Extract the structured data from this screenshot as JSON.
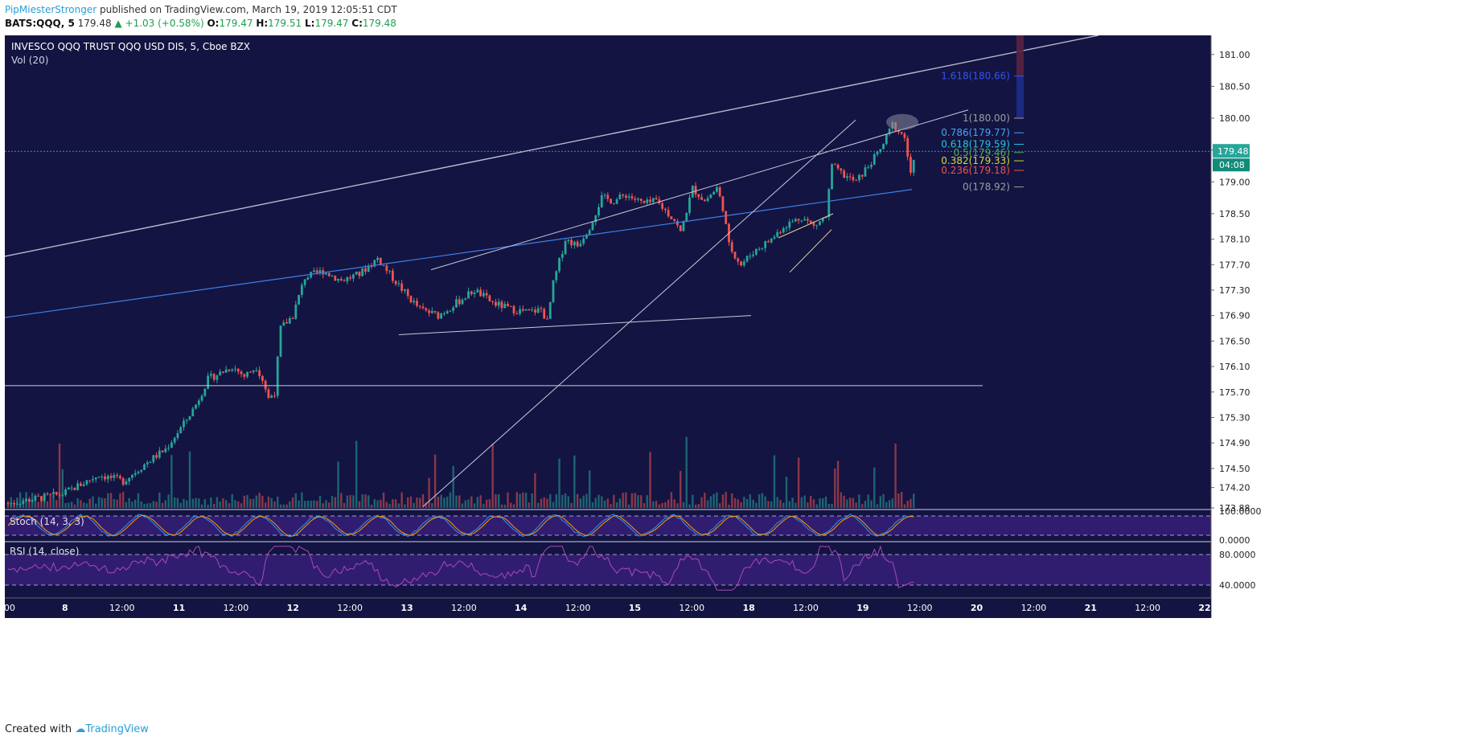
{
  "header": {
    "author": "PipMiesterStronger",
    "published": "published on TradingView.com, March 19, 2019 12:05:51 CDT",
    "symbol": "BATS:QQQ, 5",
    "last": "179.48",
    "change": "▲ +1.03 (+0.58%)",
    "o_label": "O:",
    "o": "179.47",
    "h_label": "H:",
    "h": "179.51",
    "l_label": "L:",
    "l": "179.47",
    "c_label": "C:",
    "c": "179.48"
  },
  "legend": {
    "title": "INVESCO QQQ TRUST QQQ USD DIS, 5, Cboe BZX",
    "vol": "Vol (20)",
    "stoch": "Stoch (14, 3, 3)",
    "rsi": "RSI (14, close)"
  },
  "footer": {
    "created": "Created with",
    "brand": "TradingView"
  },
  "colors": {
    "background": "#131441",
    "bull": "#26a69a",
    "bear": "#ef5350",
    "osc_band": "#3a1f7a",
    "rsi_line": "#ab47bc",
    "stoch_k": "#2196f3",
    "stoch_d": "#ff9800",
    "axis_text": "#222222",
    "price_tag": "#26a69a"
  },
  "chart_data": {
    "type": "candlestick",
    "timeframe": "5",
    "price_axis": {
      "ticks": [
        "181.00",
        "180.50",
        "180.00",
        "179.50",
        "179.00",
        "178.50",
        "178.10",
        "177.70",
        "177.30",
        "176.90",
        "176.50",
        "176.10",
        "175.70",
        "175.30",
        "174.90",
        "174.50",
        "174.20",
        "173.88"
      ],
      "ylim": [
        173.88,
        181.3
      ]
    },
    "time_axis": {
      "ticks": [
        ":00",
        "8",
        "12:00",
        "11",
        "12:00",
        "12",
        "12:00",
        "13",
        "12:00",
        "14",
        "12:00",
        "15",
        "12:00",
        "18",
        "12:00",
        "19",
        "12:00",
        "20",
        "12:00",
        "21",
        "12:00",
        "22"
      ]
    },
    "current_price": {
      "value": 179.48,
      "label": "179.48",
      "countdown": "04:08"
    },
    "fibonacci": [
      {
        "label": "1.618(180.66)",
        "level": 1.618,
        "price": 180.66,
        "color": "#3355ee"
      },
      {
        "label": "1(180.00)",
        "level": 1,
        "price": 180.0,
        "color": "#9e9e9e"
      },
      {
        "label": "0.786(179.77)",
        "level": 0.786,
        "price": 179.77,
        "color": "#42a5f5"
      },
      {
        "label": "0.618(179.59)",
        "level": 0.618,
        "price": 179.59,
        "color": "#26c6da"
      },
      {
        "label": "0.5(179.46)",
        "level": 0.5,
        "price": 179.46,
        "color": "#4caf50"
      },
      {
        "label": "0.382(179.33)",
        "level": 0.382,
        "price": 179.33,
        "color": "#cddc39"
      },
      {
        "label": "0.236(179.18)",
        "level": 0.236,
        "price": 179.18,
        "color": "#ef5350"
      },
      {
        "label": "0(178.92)",
        "level": 0,
        "price": 178.92,
        "color": "#9e9e9e"
      }
    ],
    "price_path": [
      [
        0,
        173.95
      ],
      [
        18,
        174.1
      ],
      [
        30,
        174.4
      ],
      [
        38,
        174.3
      ],
      [
        46,
        174.6
      ],
      [
        52,
        174.8
      ],
      [
        58,
        175.2
      ],
      [
        62,
        175.5
      ],
      [
        66,
        175.9
      ],
      [
        70,
        176.0
      ],
      [
        74,
        176.1
      ],
      [
        78,
        175.95
      ],
      [
        82,
        176.1
      ],
      [
        84,
        175.9
      ],
      [
        86,
        175.6
      ],
      [
        88,
        175.7
      ],
      [
        90,
        176.7
      ],
      [
        94,
        176.9
      ],
      [
        98,
        177.5
      ],
      [
        104,
        177.6
      ],
      [
        110,
        177.45
      ],
      [
        116,
        177.55
      ],
      [
        122,
        177.8
      ],
      [
        126,
        177.55
      ],
      [
        132,
        177.2
      ],
      [
        136,
        177.0
      ],
      [
        142,
        176.9
      ],
      [
        148,
        177.1
      ],
      [
        154,
        177.3
      ],
      [
        160,
        177.1
      ],
      [
        166,
        177.0
      ],
      [
        172,
        176.95
      ],
      [
        176,
        177.0
      ],
      [
        178,
        176.8
      ],
      [
        180,
        177.4
      ],
      [
        184,
        178.1
      ],
      [
        188,
        178.0
      ],
      [
        192,
        178.3
      ],
      [
        196,
        178.75
      ],
      [
        200,
        178.7
      ],
      [
        204,
        178.8
      ],
      [
        210,
        178.65
      ],
      [
        214,
        178.7
      ],
      [
        220,
        178.4
      ],
      [
        222,
        178.2
      ],
      [
        226,
        178.9
      ],
      [
        230,
        178.7
      ],
      [
        234,
        178.9
      ],
      [
        236,
        178.6
      ],
      [
        238,
        178.0
      ],
      [
        242,
        177.7
      ],
      [
        246,
        177.9
      ],
      [
        252,
        178.1
      ],
      [
        256,
        178.3
      ],
      [
        262,
        178.45
      ],
      [
        266,
        178.3
      ],
      [
        270,
        178.45
      ],
      [
        272,
        179.25
      ],
      [
        276,
        179.1
      ],
      [
        280,
        179.0
      ],
      [
        284,
        179.25
      ],
      [
        288,
        179.5
      ],
      [
        292,
        179.9
      ],
      [
        296,
        179.7
      ],
      [
        298,
        179.1
      ],
      [
        300,
        179.48
      ]
    ],
    "stoch": {
      "levels": [
        "100.0000",
        "0.0000"
      ]
    },
    "rsi": {
      "levels": [
        "80.0000",
        "40.0000"
      ]
    }
  }
}
